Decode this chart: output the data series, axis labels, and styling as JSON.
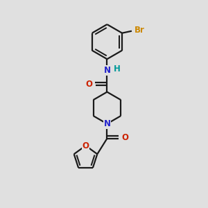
{
  "bg_color": "#e0e0e0",
  "bond_color": "#1a1a1a",
  "N_color": "#2222cc",
  "O_color": "#cc2200",
  "Br_color": "#cc8800",
  "H_color": "#009999",
  "line_width": 1.6,
  "font_size": 8.5,
  "figsize": [
    3.0,
    3.0
  ],
  "dpi": 100,
  "xlim": [
    0,
    10
  ],
  "ylim": [
    0,
    10
  ]
}
